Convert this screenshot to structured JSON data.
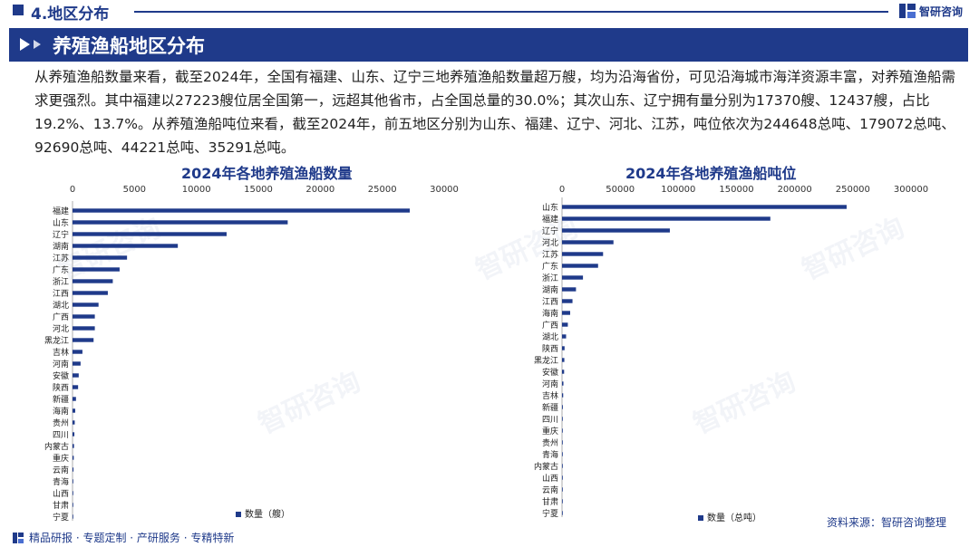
{
  "header": {
    "section_title": "4.地区分布",
    "brand": "智研咨询"
  },
  "banner": {
    "title": "养殖渔船地区分布"
  },
  "paragraph": "从养殖渔船数量来看，截至2024年，全国有福建、山东、辽宁三地养殖渔船数量超万艘，均为沿海省份，可见沿海城市海洋资源丰富，对养殖渔船需求更强烈。其中福建以27223艘位居全国第一，远超其他省市，占全国总量的30.0%；其次山东、辽宁拥有量分别为17370艘、12437艘，占比19.2%、13.7%。从养殖渔船吨位来看，截至2024年，前五地区分别为山东、福建、辽宁、河北、江苏，吨位依次为244648总吨、179072总吨、92690总吨、44221总吨、35291总吨。",
  "footer": {
    "links": "精品研报 · 专题定制 · 产研服务 · 专精特新",
    "source": "资料来源：智研咨询整理"
  },
  "colors": {
    "primary": "#1f3a8a"
  },
  "chart_data": [
    {
      "type": "bar",
      "orientation": "horizontal",
      "title": "2024年各地养殖渔船数量",
      "categories": [
        "福建",
        "山东",
        "辽宁",
        "湖南",
        "江苏",
        "广东",
        "浙江",
        "江西",
        "湖北",
        "广西",
        "河北",
        "黑龙江",
        "吉林",
        "河南",
        "安徽",
        "陕西",
        "新疆",
        "海南",
        "贵州",
        "四川",
        "内蒙古",
        "重庆",
        "云南",
        "青海",
        "山西",
        "甘肃",
        "宁夏"
      ],
      "series": [
        {
          "name": "数量（艘）",
          "values": [
            27223,
            17370,
            12437,
            8500,
            4400,
            3800,
            3250,
            2850,
            2100,
            1800,
            1800,
            1700,
            800,
            650,
            500,
            450,
            280,
            220,
            180,
            150,
            120,
            100,
            80,
            60,
            40,
            30,
            20
          ]
        }
      ],
      "xlim": [
        0,
        30000
      ],
      "xticks": [
        0,
        5000,
        10000,
        15000,
        20000,
        25000,
        30000
      ],
      "axis_position": "top",
      "legend": "bottom"
    },
    {
      "type": "bar",
      "orientation": "horizontal",
      "title": "2024年各地养殖渔船吨位",
      "categories": [
        "山东",
        "福建",
        "辽宁",
        "河北",
        "江苏",
        "广东",
        "浙江",
        "湖南",
        "江西",
        "海南",
        "广西",
        "湖北",
        "陕西",
        "黑龙江",
        "安徽",
        "河南",
        "吉林",
        "新疆",
        "四川",
        "重庆",
        "贵州",
        "青海",
        "内蒙古",
        "山西",
        "云南",
        "甘肃",
        "宁夏"
      ],
      "series": [
        {
          "name": "数量（总吨）",
          "values": [
            244648,
            179072,
            92690,
            44221,
            35291,
            31000,
            18000,
            12000,
            9000,
            7000,
            5000,
            3500,
            2200,
            2000,
            1800,
            1200,
            1000,
            700,
            500,
            400,
            350,
            300,
            250,
            200,
            150,
            100,
            80
          ]
        }
      ],
      "xlim": [
        0,
        300000
      ],
      "xticks": [
        0,
        50000,
        100000,
        150000,
        200000,
        250000,
        300000
      ],
      "axis_position": "top",
      "legend": "bottom"
    }
  ]
}
